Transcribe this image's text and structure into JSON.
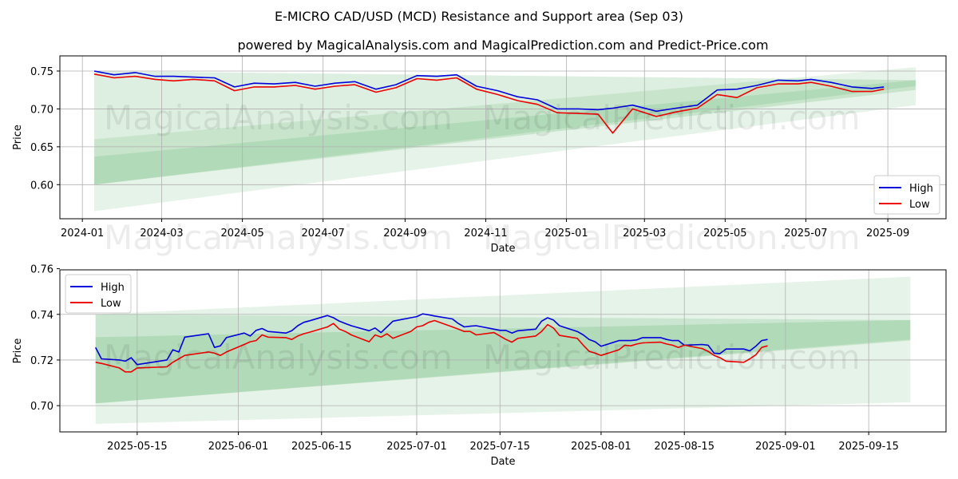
{
  "title": "E-MICRO CAD/USD (MCD) Resistance and Support area (Sep 03)",
  "subtitle": "powered by MagicalAnalysis.com and MagicalPrediction.com and Predict-Price.com",
  "watermarks": [
    "MagicalAnalysis.com",
    "MagicalPrediction.com"
  ],
  "colors": {
    "high": "#0000dd",
    "low": "#ee0000",
    "band": "#2e9e3e",
    "grid": "#b0b0b0"
  },
  "chart_data": [
    {
      "type": "line",
      "xlabel": "Date",
      "ylabel": "Price",
      "x_ticks": [
        "2024-01",
        "2024-03",
        "2024-05",
        "2024-07",
        "2024-09",
        "2024-11",
        "2025-01",
        "2025-03",
        "2025-05",
        "2025-07",
        "2025-09"
      ],
      "y_ticks": [
        "0.60",
        "0.65",
        "0.70",
        "0.75"
      ],
      "grid": true,
      "legend": "lower-right",
      "x": [
        "2024-01-10",
        "2024-01-25",
        "2024-02-10",
        "2024-02-25",
        "2024-03-10",
        "2024-03-25",
        "2024-04-10",
        "2024-04-25",
        "2024-05-10",
        "2024-05-25",
        "2024-06-10",
        "2024-06-25",
        "2024-07-10",
        "2024-07-25",
        "2024-08-10",
        "2024-08-25",
        "2024-09-10",
        "2024-09-25",
        "2024-10-10",
        "2024-10-25",
        "2024-11-10",
        "2024-11-25",
        "2024-12-10",
        "2024-12-25",
        "2025-01-10",
        "2025-01-25",
        "2025-02-05",
        "2025-02-20",
        "2025-03-10",
        "2025-03-25",
        "2025-04-10",
        "2025-04-25",
        "2025-05-10",
        "2025-05-25",
        "2025-06-10",
        "2025-06-25",
        "2025-07-05",
        "2025-07-20",
        "2025-08-05",
        "2025-08-20",
        "2025-08-29"
      ],
      "series": [
        {
          "name": "High",
          "values": [
            0.75,
            0.745,
            0.748,
            0.743,
            0.743,
            0.742,
            0.741,
            0.729,
            0.734,
            0.733,
            0.735,
            0.73,
            0.734,
            0.736,
            0.726,
            0.732,
            0.744,
            0.743,
            0.745,
            0.73,
            0.724,
            0.716,
            0.712,
            0.7,
            0.7,
            0.699,
            0.701,
            0.705,
            0.697,
            0.701,
            0.705,
            0.725,
            0.726,
            0.731,
            0.738,
            0.737,
            0.739,
            0.735,
            0.729,
            0.727,
            0.729
          ]
        },
        {
          "name": "Low",
          "values": [
            0.746,
            0.741,
            0.743,
            0.739,
            0.737,
            0.739,
            0.737,
            0.724,
            0.729,
            0.729,
            0.731,
            0.726,
            0.73,
            0.732,
            0.722,
            0.728,
            0.74,
            0.738,
            0.741,
            0.726,
            0.719,
            0.711,
            0.706,
            0.695,
            0.694,
            0.693,
            0.668,
            0.7,
            0.69,
            0.696,
            0.701,
            0.719,
            0.715,
            0.728,
            0.733,
            0.733,
            0.735,
            0.73,
            0.723,
            0.723,
            0.726
          ]
        }
      ],
      "bands": [
        {
          "x": [
            "2024-01-10",
            "2025-09-22"
          ],
          "lower": [
            0.565,
            0.705
          ],
          "upper": [
            0.66,
            0.755
          ]
        },
        {
          "x": [
            "2024-01-10",
            "2025-09-22"
          ],
          "lower": [
            0.6,
            0.725
          ],
          "upper": [
            0.75,
            0.738
          ]
        },
        {
          "x": [
            "2024-01-10",
            "2025-09-22"
          ],
          "lower": [
            0.6,
            0.73
          ],
          "upper": [
            0.637,
            0.738
          ]
        }
      ],
      "ylim": [
        0.555,
        0.77
      ],
      "xlim": [
        "2023-12-15",
        "2025-10-15"
      ]
    },
    {
      "type": "line",
      "xlabel": "Date",
      "ylabel": "Price",
      "x_ticks": [
        "2025-05-15",
        "2025-06-01",
        "2025-06-15",
        "2025-07-01",
        "2025-07-15",
        "2025-08-01",
        "2025-08-15",
        "2025-09-01",
        "2025-09-15"
      ],
      "y_ticks": [
        "0.70",
        "0.72",
        "0.74",
        "0.76"
      ],
      "grid": true,
      "legend": "top-left",
      "x": [
        "2025-05-08",
        "2025-05-09",
        "2025-05-12",
        "2025-05-13",
        "2025-05-14",
        "2025-05-15",
        "2025-05-20",
        "2025-05-21",
        "2025-05-22",
        "2025-05-23",
        "2025-05-27",
        "2025-05-28",
        "2025-05-29",
        "2025-05-30",
        "2025-06-02",
        "2025-06-03",
        "2025-06-04",
        "2025-06-05",
        "2025-06-06",
        "2025-06-09",
        "2025-06-10",
        "2025-06-11",
        "2025-06-12",
        "2025-06-13",
        "2025-06-16",
        "2025-06-17",
        "2025-06-18",
        "2025-06-19",
        "2025-06-20",
        "2025-06-23",
        "2025-06-24",
        "2025-06-25",
        "2025-06-26",
        "2025-06-27",
        "2025-06-30",
        "2025-07-01",
        "2025-07-02",
        "2025-07-03",
        "2025-07-04",
        "2025-07-07",
        "2025-07-08",
        "2025-07-09",
        "2025-07-10",
        "2025-07-11",
        "2025-07-14",
        "2025-07-15",
        "2025-07-16",
        "2025-07-17",
        "2025-07-18",
        "2025-07-21",
        "2025-07-22",
        "2025-07-23",
        "2025-07-24",
        "2025-07-25",
        "2025-07-28",
        "2025-07-29",
        "2025-07-30",
        "2025-07-31",
        "2025-08-01",
        "2025-08-04",
        "2025-08-05",
        "2025-08-06",
        "2025-08-07",
        "2025-08-08",
        "2025-08-11",
        "2025-08-12",
        "2025-08-13",
        "2025-08-14",
        "2025-08-15",
        "2025-08-18",
        "2025-08-19",
        "2025-08-20",
        "2025-08-21",
        "2025-08-22",
        "2025-08-25",
        "2025-08-26",
        "2025-08-27",
        "2025-08-28",
        "2025-08-29"
      ],
      "series": [
        {
          "name": "High",
          "values": [
            0.7255,
            0.7205,
            0.72,
            0.7195,
            0.721,
            0.718,
            0.72,
            0.7245,
            0.7235,
            0.73,
            0.7315,
            0.7255,
            0.7262,
            0.7298,
            0.7318,
            0.7305,
            0.733,
            0.7338,
            0.7325,
            0.7318,
            0.7328,
            0.735,
            0.7365,
            0.7372,
            0.7395,
            0.7385,
            0.737,
            0.736,
            0.735,
            0.7328,
            0.734,
            0.732,
            0.7345,
            0.737,
            0.7385,
            0.739,
            0.7402,
            0.7398,
            0.7393,
            0.738,
            0.736,
            0.7345,
            0.7348,
            0.735,
            0.7335,
            0.733,
            0.733,
            0.7318,
            0.7328,
            0.7335,
            0.737,
            0.7385,
            0.7375,
            0.735,
            0.7325,
            0.731,
            0.729,
            0.728,
            0.726,
            0.7285,
            0.7285,
            0.7285,
            0.7288,
            0.7298,
            0.7298,
            0.729,
            0.7285,
            0.7285,
            0.7265,
            0.7268,
            0.7265,
            0.723,
            0.7228,
            0.7248,
            0.7248,
            0.724,
            0.726,
            0.7285,
            0.729
          ]
        },
        {
          "name": "Low",
          "values": [
            0.719,
            0.7185,
            0.7165,
            0.7148,
            0.7148,
            0.7165,
            0.717,
            0.719,
            0.7205,
            0.722,
            0.7235,
            0.723,
            0.722,
            0.7235,
            0.7268,
            0.728,
            0.7285,
            0.731,
            0.73,
            0.7298,
            0.729,
            0.7305,
            0.7315,
            0.7322,
            0.7345,
            0.736,
            0.7335,
            0.7325,
            0.731,
            0.728,
            0.731,
            0.73,
            0.7315,
            0.7295,
            0.7325,
            0.7345,
            0.735,
            0.7365,
            0.7373,
            0.7345,
            0.7335,
            0.7325,
            0.7325,
            0.731,
            0.732,
            0.7305,
            0.729,
            0.7278,
            0.7295,
            0.7305,
            0.7325,
            0.7355,
            0.734,
            0.7308,
            0.7295,
            0.7265,
            0.7238,
            0.723,
            0.722,
            0.7245,
            0.7265,
            0.7262,
            0.727,
            0.7275,
            0.7278,
            0.727,
            0.7265,
            0.7255,
            0.7265,
            0.725,
            0.7238,
            0.722,
            0.721,
            0.7195,
            0.719,
            0.7205,
            0.7222,
            0.7255,
            0.7262
          ]
        }
      ],
      "bands": [
        {
          "x": [
            "2025-05-08",
            "2025-09-22"
          ],
          "lower": [
            0.692,
            0.7015
          ],
          "upper": [
            0.74,
            0.7565
          ]
        },
        {
          "x": [
            "2025-05-08",
            "2025-09-22"
          ],
          "lower": [
            0.701,
            0.7285
          ],
          "upper": [
            0.73,
            0.7375
          ]
        },
        {
          "x": [
            "2025-05-08",
            "2025-09-22"
          ],
          "lower": [
            0.701,
            0.729
          ],
          "upper": [
            0.74,
            0.7375
          ]
        }
      ],
      "ylim": [
        0.6885,
        0.7595
      ],
      "xlim": [
        "2025-05-02",
        "2025-09-28"
      ]
    }
  ]
}
